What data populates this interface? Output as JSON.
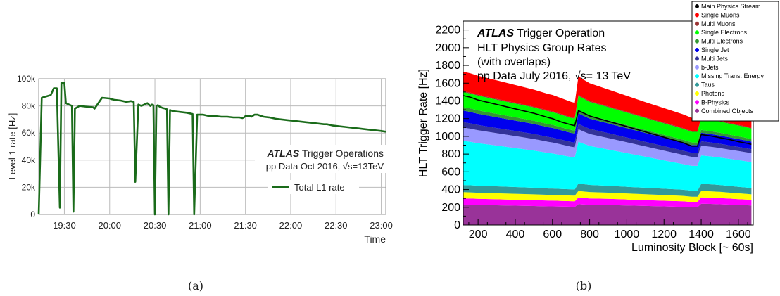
{
  "chart_data": [
    {
      "type": "line",
      "panel_label": "(a)",
      "xlabel": "Time",
      "ylabel": "Level 1 rate [Hz]",
      "x_tick_labels": [
        "19:30",
        "20:00",
        "20:30",
        "21:00",
        "21:30",
        "22:00",
        "22:30",
        "23:00"
      ],
      "x_ticks_minutes": [
        1170,
        1200,
        1230,
        1260,
        1290,
        1320,
        1350,
        1380
      ],
      "xlim_minutes": [
        1153,
        1383
      ],
      "y_tick_labels": [
        "0",
        "20k",
        "40k",
        "60k",
        "80k",
        "100k"
      ],
      "y_ticks": [
        0,
        20000,
        40000,
        60000,
        80000,
        100000
      ],
      "ylim": [
        0,
        100000
      ],
      "grid": true,
      "annotation": {
        "bold": "ATLAS",
        "rest": " Trigger Operations",
        "line2": "pp Data Oct 2016, √s=13TeV"
      },
      "legend": {
        "position": "right",
        "entries": [
          "Total L1 rate"
        ]
      },
      "series": [
        {
          "name": "Total L1 rate",
          "color": "#1a6b1a",
          "x": [
            1153,
            1155,
            1158,
            1161,
            1163,
            1165,
            1167,
            1168,
            1169,
            1170,
            1171,
            1173,
            1175,
            1176,
            1177,
            1180,
            1184,
            1189,
            1190,
            1195,
            1200,
            1201,
            1203,
            1207,
            1211,
            1214,
            1216,
            1217,
            1219,
            1221,
            1225,
            1227,
            1228,
            1229,
            1230,
            1231,
            1232,
            1233,
            1234,
            1235,
            1237,
            1238,
            1239,
            1240,
            1241,
            1243,
            1247,
            1251,
            1253,
            1255,
            1256,
            1258,
            1262,
            1266,
            1270,
            1274,
            1278,
            1282,
            1286,
            1288,
            1289,
            1290,
            1291,
            1292,
            1293,
            1294,
            1296,
            1298,
            1302,
            1306,
            1310,
            1314,
            1318,
            1322,
            1326,
            1330,
            1334,
            1338,
            1342,
            1344,
            1346,
            1348,
            1352,
            1356,
            1360,
            1364,
            1368,
            1372,
            1376,
            1380,
            1383
          ],
          "y": [
            0,
            86000,
            87000,
            88000,
            93000,
            93000,
            5000,
            97000,
            97000,
            97000,
            82000,
            81000,
            80000,
            2000,
            78000,
            80000,
            79500,
            79000,
            78000,
            86000,
            85500,
            85000,
            84500,
            84000,
            83000,
            83500,
            83000,
            24000,
            81000,
            80000,
            82000,
            80000,
            81000,
            80500,
            0,
            80000,
            80500,
            79500,
            79000,
            78500,
            78000,
            77500,
            0,
            77000,
            76500,
            76000,
            75500,
            75000,
            74500,
            74000,
            0,
            73500,
            73500,
            72500,
            72500,
            72000,
            72000,
            71500,
            71500,
            71000,
            71500,
            72500,
            72500,
            72500,
            72500,
            72000,
            73500,
            73500,
            72000,
            71500,
            70500,
            70000,
            69500,
            69000,
            68500,
            68000,
            67500,
            67000,
            66500,
            66500,
            66000,
            65500,
            65000,
            64500,
            64000,
            63500,
            63000,
            62500,
            62000,
            61500,
            61000
          ]
        }
      ]
    },
    {
      "type": "area",
      "panel_label": "(b)",
      "xlabel": "Luminosity Block [~ 60s]",
      "ylabel": "HLT Trigger Rate [Hz]",
      "xlim": [
        120,
        1680
      ],
      "ylim": [
        0,
        2300
      ],
      "x_tick_labels": [
        "200",
        "400",
        "600",
        "800",
        "1000",
        "1200",
        "1400",
        "1600"
      ],
      "x_ticks": [
        200,
        400,
        600,
        800,
        1000,
        1200,
        1400,
        1600
      ],
      "y_tick_labels": [
        "0",
        "200",
        "400",
        "600",
        "800",
        "1000",
        "1200",
        "1400",
        "1600",
        "1800",
        "2000",
        "2200"
      ],
      "y_ticks": [
        0,
        200,
        400,
        600,
        800,
        1000,
        1200,
        1400,
        1600,
        1800,
        2000,
        2200
      ],
      "annotation": {
        "bold": "ATLAS",
        "rest": " Trigger Operation",
        "line2": "HLT Physics Group Rates",
        "line3": "(with overlaps)",
        "line4": "pp Data July 2016, √s= 13 TeV"
      },
      "legend": {
        "position": "top-right",
        "entries": [
          {
            "name": "Main Physics Stream",
            "color": "#000000"
          },
          {
            "name": "Single Muons",
            "color": "#ff0000"
          },
          {
            "name": "Multi Muons",
            "color": "#993333"
          },
          {
            "name": "Single Electrons",
            "color": "#00ff00"
          },
          {
            "name": "Multi Electrons",
            "color": "#339933"
          },
          {
            "name": "Single Jet",
            "color": "#0000ee"
          },
          {
            "name": "Multi Jets",
            "color": "#333399"
          },
          {
            "name": "b-Jets",
            "color": "#9999ff"
          },
          {
            "name": "Missing Trans. Energy",
            "color": "#00ffff"
          },
          {
            "name": "Taus",
            "color": "#339999"
          },
          {
            "name": "Photons",
            "color": "#ffff00"
          },
          {
            "name": "B-Physics",
            "color": "#ff00ff"
          },
          {
            "name": "Combined Objects",
            "color": "#993399"
          }
        ]
      },
      "x": [
        120,
        160,
        200,
        300,
        400,
        500,
        580,
        600,
        650,
        700,
        720,
        740,
        760,
        800,
        900,
        1000,
        1100,
        1200,
        1300,
        1350,
        1380,
        1400,
        1450,
        1500,
        1550,
        1600,
        1650,
        1670
      ],
      "stack_order": [
        "Combined Objects",
        "B-Physics",
        "Photons",
        "Taus",
        "Missing Trans. Energy",
        "b-Jets",
        "Multi Jets",
        "Single Jet",
        "Multi Electrons",
        "Single Electrons",
        "Multi Muons",
        "Single Muons"
      ],
      "series": [
        {
          "name": "Combined Objects",
          "color": "#993399",
          "values": [
            230,
            228,
            226,
            222,
            218,
            214,
            210,
            210,
            208,
            206,
            205,
            235,
            232,
            228,
            225,
            220,
            215,
            210,
            205,
            200,
            200,
            240,
            238,
            234,
            230,
            226,
            222,
            220
          ]
        },
        {
          "name": "B-Physics",
          "color": "#ff00ff",
          "values": [
            70,
            70,
            69,
            68,
            67,
            66,
            65,
            65,
            64,
            63,
            63,
            75,
            74,
            72,
            70,
            68,
            66,
            64,
            62,
            60,
            60,
            72,
            71,
            70,
            68,
            66,
            64,
            63
          ]
        },
        {
          "name": "Photons",
          "color": "#ffff00",
          "values": [
            70,
            70,
            69,
            68,
            67,
            66,
            65,
            65,
            64,
            63,
            63,
            75,
            74,
            72,
            70,
            68,
            66,
            64,
            62,
            60,
            60,
            72,
            71,
            70,
            68,
            66,
            64,
            63
          ]
        },
        {
          "name": "Taus",
          "color": "#339999",
          "values": [
            80,
            80,
            79,
            78,
            76,
            74,
            72,
            72,
            71,
            70,
            70,
            85,
            83,
            80,
            77,
            75,
            73,
            71,
            69,
            67,
            67,
            80,
            79,
            77,
            75,
            73,
            71,
            70
          ]
        },
        {
          "name": "Missing Trans. Energy",
          "color": "#00ffff",
          "values": [
            500,
            490,
            480,
            460,
            440,
            420,
            400,
            395,
            380,
            365,
            360,
            470,
            460,
            440,
            410,
            380,
            350,
            320,
            290,
            280,
            280,
            320,
            315,
            310,
            305,
            300,
            295,
            293
          ]
        },
        {
          "name": "b-Jets",
          "color": "#9999ff",
          "values": [
            150,
            148,
            146,
            140,
            135,
            130,
            125,
            124,
            120,
            116,
            115,
            140,
            138,
            134,
            128,
            122,
            116,
            110,
            104,
            100,
            100,
            110,
            109,
            107,
            105,
            103,
            101,
            100
          ]
        },
        {
          "name": "Multi Jets",
          "color": "#333399",
          "values": [
            60,
            60,
            59,
            58,
            57,
            56,
            55,
            55,
            54,
            53,
            53,
            60,
            59,
            58,
            56,
            54,
            52,
            50,
            48,
            46,
            46,
            50,
            49,
            48,
            47,
            46,
            45,
            45
          ]
        },
        {
          "name": "Single Jet",
          "color": "#0000ee",
          "values": [
            130,
            128,
            126,
            122,
            118,
            114,
            110,
            109,
            106,
            103,
            102,
            120,
            118,
            115,
            110,
            105,
            100,
            96,
            92,
            88,
            88,
            96,
            95,
            93,
            91,
            89,
            87,
            86
          ]
        },
        {
          "name": "Multi Electrons",
          "color": "#339933",
          "values": [
            40,
            40,
            39,
            38,
            37,
            36,
            35,
            35,
            34,
            33,
            33,
            38,
            37,
            36,
            35,
            34,
            33,
            32,
            31,
            30,
            30,
            33,
            32,
            32,
            31,
            31,
            30,
            30
          ]
        },
        {
          "name": "Single Electrons",
          "color": "#00ff00",
          "values": [
            170,
            168,
            166,
            160,
            155,
            150,
            145,
            144,
            140,
            136,
            135,
            160,
            158,
            154,
            148,
            142,
            136,
            130,
            124,
            120,
            120,
            130,
            128,
            126,
            124,
            122,
            120,
            119
          ]
        },
        {
          "name": "Multi Muons",
          "color": "#993333",
          "values": [
            10,
            10,
            10,
            10,
            9,
            9,
            9,
            9,
            9,
            9,
            9,
            10,
            10,
            10,
            9,
            9,
            9,
            9,
            8,
            8,
            8,
            9,
            9,
            9,
            9,
            9,
            8,
            8
          ]
        },
        {
          "name": "Single Muons",
          "color": "#ff0000",
          "values": [
            220,
            218,
            215,
            208,
            200,
            192,
            185,
            184,
            178,
            172,
            170,
            210,
            206,
            200,
            190,
            180,
            170,
            162,
            155,
            150,
            150,
            165,
            162,
            158,
            154,
            150,
            146,
            145
          ]
        },
        {
          "name": "Main Physics Stream",
          "color": "#000000",
          "line": true,
          "values": [
            1460,
            1440,
            1410,
            1360,
            1310,
            1260,
            1210,
            1200,
            1160,
            1130,
            1120,
            1290,
            1270,
            1230,
            1170,
            1110,
            1050,
            990,
            930,
            890,
            890,
            1020,
            1005,
            985,
            965,
            940,
            920,
            910
          ]
        }
      ]
    }
  ]
}
